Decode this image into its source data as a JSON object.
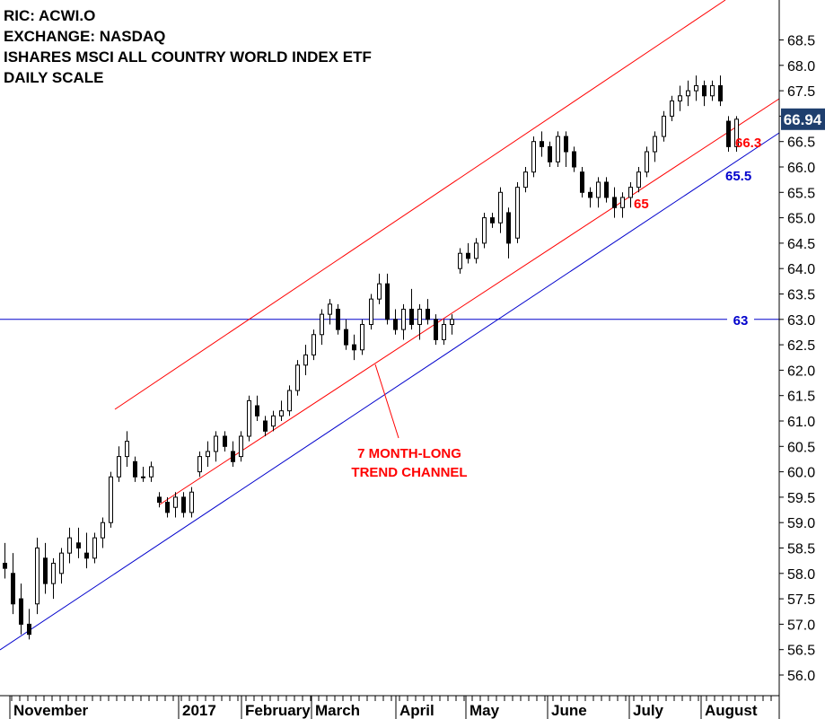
{
  "header": {
    "ric": "RIC: ACWI.O",
    "exchange": "EXCHANGE: NASDAQ",
    "name": "ISHARES MSCI ALL COUNTRY WORLD INDEX ETF",
    "scale": "DAILY SCALE"
  },
  "chart_data": {
    "type": "candlestick",
    "ylim": [
      55.6,
      68.9
    ],
    "y_ticks": [
      56.0,
      56.5,
      57.0,
      57.5,
      58.0,
      58.5,
      59.0,
      59.5,
      60.0,
      60.5,
      61.0,
      61.5,
      62.0,
      62.5,
      63.0,
      63.5,
      64.0,
      64.5,
      65.0,
      65.5,
      66.0,
      66.5,
      67.0,
      67.5,
      68.0,
      68.5
    ],
    "x_labels": [
      "November",
      "2017",
      "February",
      "March",
      "April",
      "May",
      "June",
      "July",
      "August"
    ],
    "last_price": "66.94",
    "colors": {
      "up_fill": "#ffffff",
      "down_fill": "#000000",
      "channel": "#ff0000",
      "support": "#0000cc",
      "price_tag": "#1f3f6e"
    },
    "annotations": {
      "channel_label_line1": "7 MONTH-LONG",
      "channel_label_line2": "TREND CHANNEL",
      "label_63": "63",
      "label_65": "65",
      "label_66_3": "66.3",
      "label_65_5": "65.5"
    },
    "levels": {
      "horizontal_support": 63.0
    },
    "candles": [
      {
        "o": 58.2,
        "h": 58.6,
        "l": 57.9,
        "c": 58.1
      },
      {
        "o": 58.0,
        "h": 58.4,
        "l": 57.2,
        "c": 57.4
      },
      {
        "o": 57.5,
        "h": 57.8,
        "l": 56.8,
        "c": 57.0
      },
      {
        "o": 57.0,
        "h": 57.3,
        "l": 56.7,
        "c": 56.8
      },
      {
        "o": 57.4,
        "h": 58.7,
        "l": 57.2,
        "c": 58.5
      },
      {
        "o": 58.3,
        "h": 58.6,
        "l": 57.6,
        "c": 57.8
      },
      {
        "o": 57.8,
        "h": 58.3,
        "l": 57.5,
        "c": 58.2
      },
      {
        "o": 58.0,
        "h": 58.5,
        "l": 57.8,
        "c": 58.4
      },
      {
        "o": 58.4,
        "h": 58.9,
        "l": 58.2,
        "c": 58.7
      },
      {
        "o": 58.6,
        "h": 58.9,
        "l": 58.3,
        "c": 58.5
      },
      {
        "o": 58.4,
        "h": 58.8,
        "l": 58.1,
        "c": 58.3
      },
      {
        "o": 58.3,
        "h": 58.8,
        "l": 58.2,
        "c": 58.7
      },
      {
        "o": 58.7,
        "h": 59.1,
        "l": 58.5,
        "c": 59.0
      },
      {
        "o": 59.0,
        "h": 60.0,
        "l": 58.9,
        "c": 59.9
      },
      {
        "o": 59.9,
        "h": 60.5,
        "l": 59.8,
        "c": 60.3
      },
      {
        "o": 60.3,
        "h": 60.8,
        "l": 60.1,
        "c": 60.6
      },
      {
        "o": 60.2,
        "h": 60.3,
        "l": 59.8,
        "c": 59.9
      },
      {
        "o": 59.9,
        "h": 60.1,
        "l": 59.8,
        "c": 59.9
      },
      {
        "o": 59.9,
        "h": 60.2,
        "l": 59.8,
        "c": 60.1
      },
      {
        "o": 59.5,
        "h": 59.6,
        "l": 59.3,
        "c": 59.4
      },
      {
        "o": 59.4,
        "h": 59.5,
        "l": 59.1,
        "c": 59.2
      },
      {
        "o": 59.3,
        "h": 59.6,
        "l": 59.1,
        "c": 59.5
      },
      {
        "o": 59.5,
        "h": 59.6,
        "l": 59.1,
        "c": 59.2
      },
      {
        "o": 59.2,
        "h": 59.7,
        "l": 59.1,
        "c": 59.6
      },
      {
        "o": 60.0,
        "h": 60.4,
        "l": 59.9,
        "c": 60.3
      },
      {
        "o": 60.3,
        "h": 60.6,
        "l": 60.1,
        "c": 60.4
      },
      {
        "o": 60.4,
        "h": 60.8,
        "l": 60.2,
        "c": 60.7
      },
      {
        "o": 60.7,
        "h": 60.8,
        "l": 60.4,
        "c": 60.5
      },
      {
        "o": 60.4,
        "h": 60.6,
        "l": 60.1,
        "c": 60.2
      },
      {
        "o": 60.3,
        "h": 60.8,
        "l": 60.2,
        "c": 60.7
      },
      {
        "o": 60.7,
        "h": 61.5,
        "l": 60.6,
        "c": 61.4
      },
      {
        "o": 61.3,
        "h": 61.5,
        "l": 61.0,
        "c": 61.1
      },
      {
        "o": 61.0,
        "h": 61.1,
        "l": 60.7,
        "c": 60.8
      },
      {
        "o": 60.9,
        "h": 61.2,
        "l": 60.8,
        "c": 61.1
      },
      {
        "o": 61.1,
        "h": 61.4,
        "l": 61.0,
        "c": 61.2
      },
      {
        "o": 61.2,
        "h": 61.7,
        "l": 61.1,
        "c": 61.6
      },
      {
        "o": 61.6,
        "h": 62.2,
        "l": 61.5,
        "c": 62.1
      },
      {
        "o": 62.1,
        "h": 62.5,
        "l": 61.9,
        "c": 62.3
      },
      {
        "o": 62.3,
        "h": 62.8,
        "l": 62.2,
        "c": 62.7
      },
      {
        "o": 62.7,
        "h": 63.2,
        "l": 62.5,
        "c": 63.1
      },
      {
        "o": 63.1,
        "h": 63.4,
        "l": 62.9,
        "c": 63.3
      },
      {
        "o": 63.2,
        "h": 63.3,
        "l": 62.7,
        "c": 62.8
      },
      {
        "o": 62.8,
        "h": 63.0,
        "l": 62.4,
        "c": 62.5
      },
      {
        "o": 62.5,
        "h": 62.7,
        "l": 62.2,
        "c": 62.4
      },
      {
        "o": 62.4,
        "h": 63.0,
        "l": 62.3,
        "c": 62.9
      },
      {
        "o": 62.9,
        "h": 63.5,
        "l": 62.8,
        "c": 63.4
      },
      {
        "o": 63.4,
        "h": 63.9,
        "l": 63.3,
        "c": 63.7
      },
      {
        "o": 63.7,
        "h": 63.9,
        "l": 62.9,
        "c": 63.0
      },
      {
        "o": 63.0,
        "h": 63.2,
        "l": 62.7,
        "c": 62.8
      },
      {
        "o": 62.8,
        "h": 63.3,
        "l": 62.6,
        "c": 63.2
      },
      {
        "o": 63.2,
        "h": 63.6,
        "l": 62.8,
        "c": 62.9
      },
      {
        "o": 62.9,
        "h": 63.3,
        "l": 62.6,
        "c": 63.2
      },
      {
        "o": 63.2,
        "h": 63.4,
        "l": 62.9,
        "c": 63.0
      },
      {
        "o": 63.0,
        "h": 63.1,
        "l": 62.5,
        "c": 62.6
      },
      {
        "o": 62.6,
        "h": 63.0,
        "l": 62.5,
        "c": 62.9
      },
      {
        "o": 62.9,
        "h": 63.1,
        "l": 62.7,
        "c": 63.0
      },
      {
        "o": 64.0,
        "h": 64.4,
        "l": 63.9,
        "c": 64.3
      },
      {
        "o": 64.3,
        "h": 64.5,
        "l": 64.1,
        "c": 64.2
      },
      {
        "o": 64.2,
        "h": 64.6,
        "l": 64.1,
        "c": 64.5
      },
      {
        "o": 64.5,
        "h": 65.1,
        "l": 64.4,
        "c": 65.0
      },
      {
        "o": 65.0,
        "h": 65.1,
        "l": 64.8,
        "c": 64.9
      },
      {
        "o": 64.9,
        "h": 65.6,
        "l": 64.7,
        "c": 65.5
      },
      {
        "o": 65.1,
        "h": 65.2,
        "l": 64.2,
        "c": 64.5
      },
      {
        "o": 64.6,
        "h": 65.7,
        "l": 64.5,
        "c": 65.6
      },
      {
        "o": 65.6,
        "h": 66.0,
        "l": 65.5,
        "c": 65.9
      },
      {
        "o": 65.9,
        "h": 66.6,
        "l": 65.8,
        "c": 66.5
      },
      {
        "o": 66.5,
        "h": 66.7,
        "l": 66.2,
        "c": 66.4
      },
      {
        "o": 66.4,
        "h": 66.5,
        "l": 66.0,
        "c": 66.1
      },
      {
        "o": 66.1,
        "h": 66.7,
        "l": 66.0,
        "c": 66.6
      },
      {
        "o": 66.6,
        "h": 66.7,
        "l": 66.0,
        "c": 66.3
      },
      {
        "o": 66.3,
        "h": 66.4,
        "l": 65.9,
        "c": 66.0
      },
      {
        "o": 65.9,
        "h": 66.0,
        "l": 65.4,
        "c": 65.5
      },
      {
        "o": 65.5,
        "h": 65.6,
        "l": 65.2,
        "c": 65.4
      },
      {
        "o": 65.4,
        "h": 65.8,
        "l": 65.2,
        "c": 65.7
      },
      {
        "o": 65.7,
        "h": 65.8,
        "l": 65.3,
        "c": 65.4
      },
      {
        "o": 65.4,
        "h": 65.6,
        "l": 65.0,
        "c": 65.2
      },
      {
        "o": 65.2,
        "h": 65.5,
        "l": 65.0,
        "c": 65.4
      },
      {
        "o": 65.4,
        "h": 65.7,
        "l": 65.2,
        "c": 65.6
      },
      {
        "o": 65.6,
        "h": 66.0,
        "l": 65.5,
        "c": 65.9
      },
      {
        "o": 65.9,
        "h": 66.4,
        "l": 65.8,
        "c": 66.3
      },
      {
        "o": 66.3,
        "h": 66.7,
        "l": 66.1,
        "c": 66.6
      },
      {
        "o": 66.6,
        "h": 67.1,
        "l": 66.5,
        "c": 67.0
      },
      {
        "o": 67.0,
        "h": 67.4,
        "l": 66.9,
        "c": 67.3
      },
      {
        "o": 67.3,
        "h": 67.6,
        "l": 67.1,
        "c": 67.4
      },
      {
        "o": 67.4,
        "h": 67.7,
        "l": 67.2,
        "c": 67.5
      },
      {
        "o": 67.5,
        "h": 67.8,
        "l": 67.3,
        "c": 67.6
      },
      {
        "o": 67.6,
        "h": 67.7,
        "l": 67.2,
        "c": 67.4
      },
      {
        "o": 67.4,
        "h": 67.7,
        "l": 67.3,
        "c": 67.6
      },
      {
        "o": 67.6,
        "h": 67.8,
        "l": 67.2,
        "c": 67.3
      },
      {
        "o": 66.9,
        "h": 67.0,
        "l": 66.3,
        "c": 66.4
      },
      {
        "o": 66.4,
        "h": 67.0,
        "l": 66.3,
        "c": 66.94
      }
    ]
  }
}
